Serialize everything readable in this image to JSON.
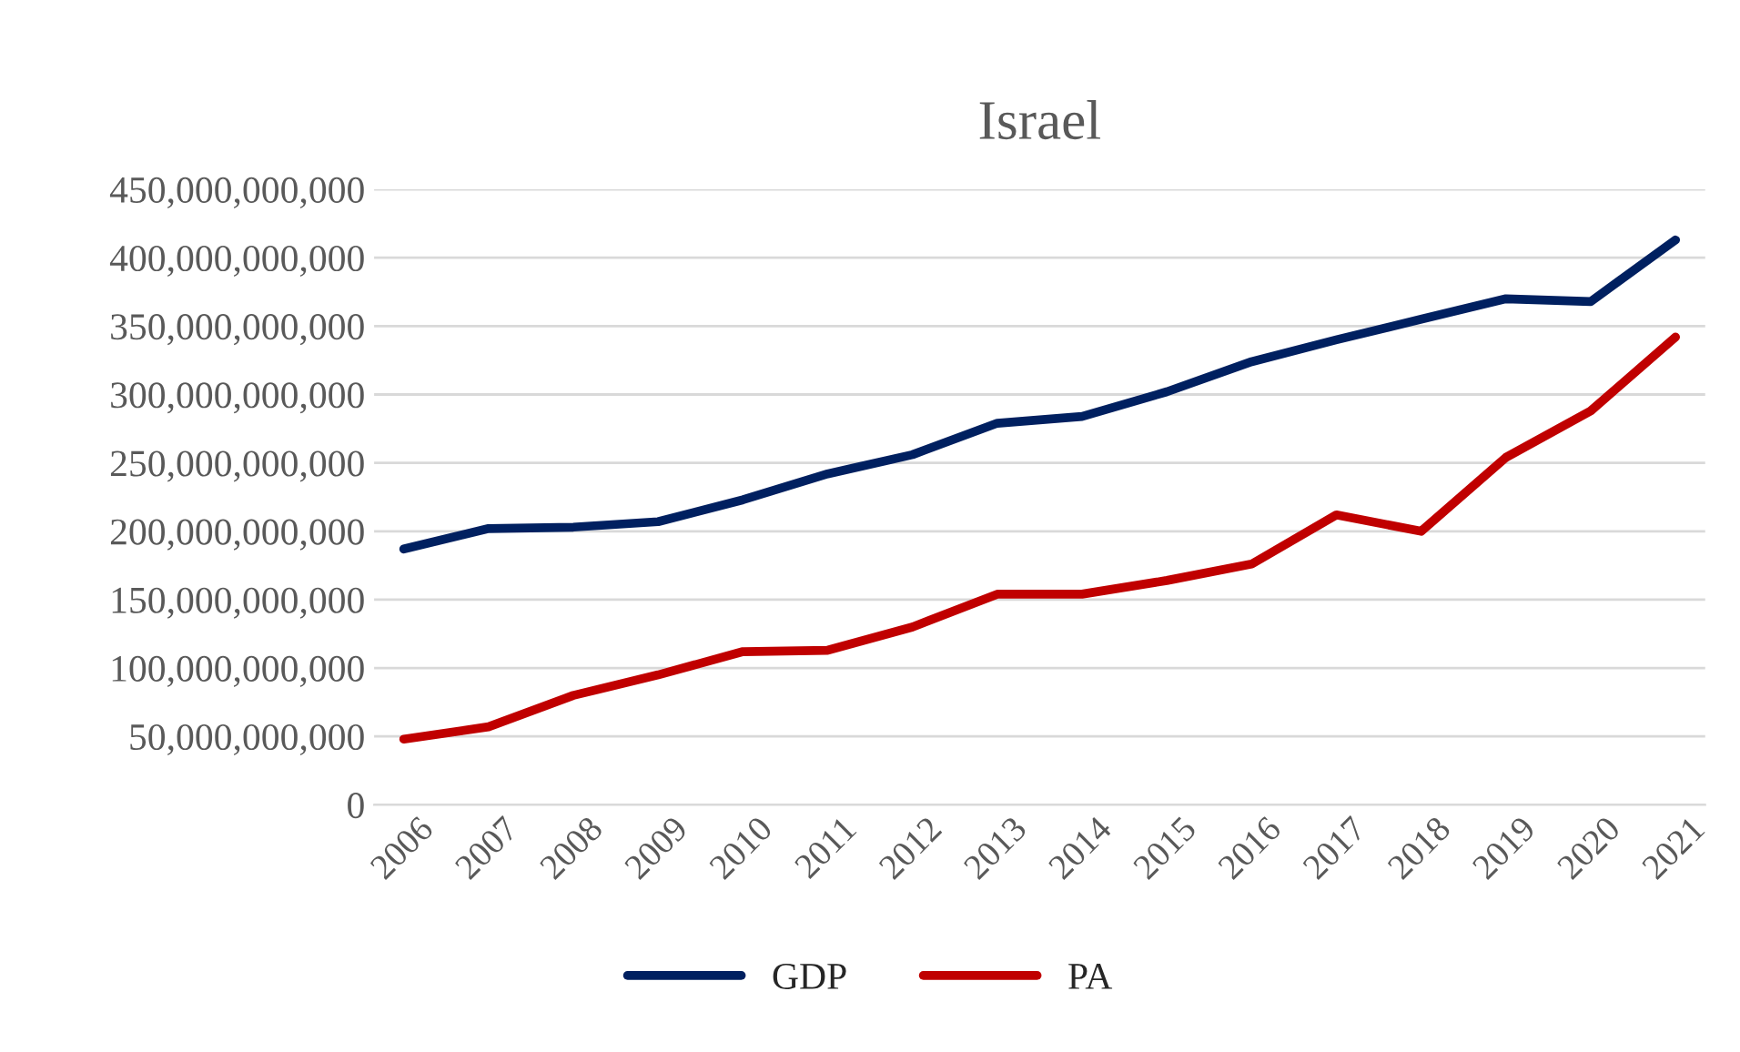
{
  "chart_data": {
    "type": "line",
    "title": "Israel",
    "categories": [
      "2006",
      "2007",
      "2008",
      "2009",
      "2010",
      "2011",
      "2012",
      "2013",
      "2014",
      "2015",
      "2016",
      "2017",
      "2018",
      "2019",
      "2020",
      "2021"
    ],
    "series": [
      {
        "name": "GDP",
        "color": "#002060",
        "values": [
          187000000000,
          202000000000,
          203000000000,
          207000000000,
          223000000000,
          242000000000,
          256000000000,
          279000000000,
          284000000000,
          302000000000,
          324000000000,
          340000000000,
          355000000000,
          370000000000,
          368000000000,
          413000000000
        ]
      },
      {
        "name": "PA",
        "color": "#c00000",
        "values": [
          48000000000,
          57000000000,
          80000000000,
          95000000000,
          112000000000,
          113000000000,
          130000000000,
          154000000000,
          154000000000,
          164000000000,
          176000000000,
          212000000000,
          200000000000,
          254000000000,
          288000000000,
          342000000000
        ]
      }
    ],
    "ylim": [
      0,
      450000000000
    ],
    "yticks": [
      0,
      {
        "value": 50000000000,
        "label": "50,000,000,000"
      },
      {
        "value": 100000000000,
        "label": "100,000,000,000"
      },
      {
        "value": 150000000000,
        "label": "150,000,000,000"
      },
      {
        "value": 200000000000,
        "label": "200,000,000,000"
      },
      {
        "value": 250000000000,
        "label": "250,000,000,000"
      },
      {
        "value": 300000000000,
        "label": "300,000,000,000"
      },
      {
        "value": 350000000000,
        "label": "350,000,000,000"
      },
      {
        "value": 400000000000,
        "label": "400,000,000,000"
      },
      {
        "value": 450000000000,
        "label": "450,000,000,000"
      }
    ],
    "grid": "y",
    "legend": "bottom",
    "marker": "none",
    "line_style": "solid"
  }
}
